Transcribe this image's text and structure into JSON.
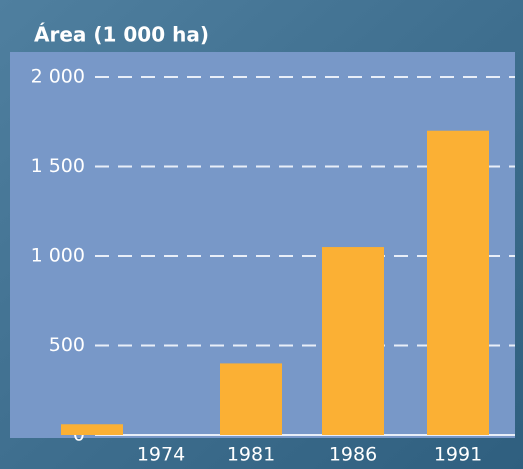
{
  "chart_data": {
    "type": "bar",
    "title": "Área (1 000 ha)",
    "categories": [
      "1974",
      "1981",
      "1986",
      "1991"
    ],
    "values": [
      60,
      400,
      1050,
      1700
    ],
    "color": "#fbb034",
    "ylim": [
      0,
      2000
    ],
    "yticks": [
      0,
      500,
      {
        "value": 1000,
        "label": "1 000"
      },
      {
        "value": 1500,
        "label": "1 500"
      },
      {
        "value": 2000,
        "label": "2 000"
      }
    ],
    "grid": true
  }
}
